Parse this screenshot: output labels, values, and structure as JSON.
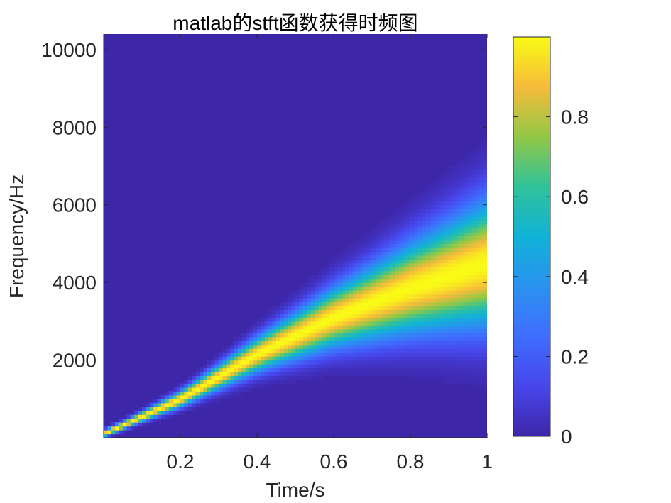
{
  "chart_data": {
    "type": "heatmap",
    "title": "matlab的stft函数获得时频图",
    "xlabel": "Time/s",
    "ylabel": "Frequency/Hz",
    "xlim": [
      0,
      1
    ],
    "ylim": [
      0,
      10400
    ],
    "xticks": [
      0.2,
      0.4,
      0.6,
      0.8,
      1
    ],
    "xtick_labels": [
      "0.2",
      "0.4",
      "0.6",
      "0.8",
      "1"
    ],
    "yticks": [
      2000,
      4000,
      6000,
      8000,
      10000
    ],
    "ytick_labels": [
      "2000",
      "4000",
      "6000",
      "8000",
      "10000"
    ],
    "colormap": "parula",
    "colorbar": {
      "range": [
        0,
        1
      ],
      "ticks": [
        0,
        0.2,
        0.4,
        0.6,
        0.8
      ],
      "tick_labels": [
        "0",
        "0.2",
        "0.4",
        "0.6",
        "0.8"
      ]
    },
    "ridge": {
      "description_points": [
        [
          0,
          100
        ],
        [
          0.2,
          1000
        ],
        [
          0.4,
          2150
        ],
        [
          0.6,
          3100
        ],
        [
          0.8,
          3850
        ],
        [
          1.0,
          4500
        ]
      ]
    },
    "grid": false
  }
}
